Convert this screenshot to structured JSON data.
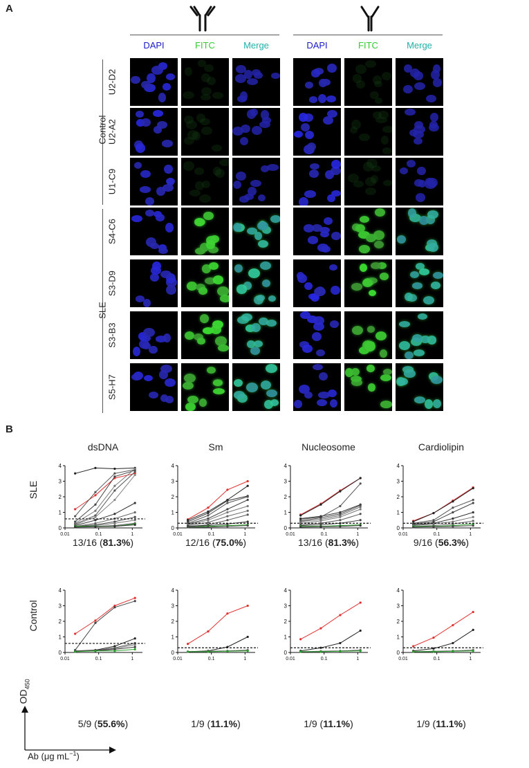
{
  "panelA": {
    "letter": "A",
    "channels": [
      "DAPI",
      "FITC",
      "Merge"
    ],
    "channel_colors": {
      "DAPI": "#1a1acc",
      "FITC": "#33cc33",
      "Merge": "#20b0a8"
    },
    "groups": [
      {
        "label": "Control",
        "samples": [
          "U2-D2",
          "U2-A2",
          "U1-C9"
        ]
      },
      {
        "label": "SLE",
        "samples": [
          "S4-C6",
          "S3-D9",
          "S3-B3",
          "S5-H7"
        ]
      }
    ],
    "antibody_icons": [
      "igg-dimer-icon",
      "igg-monomer-icon"
    ]
  },
  "panelB": {
    "letter": "B",
    "y_axis_label": "OD",
    "y_axis_sub": "450",
    "x_axis_label": "Ab (μg mL",
    "x_axis_sup": "−1",
    "x_axis_close": ")",
    "row_labels": [
      "SLE",
      "Control"
    ],
    "column_titles": [
      "dsDNA",
      "Sm",
      "Nucleosome",
      "Cardiolipin"
    ],
    "stats": {
      "sle": [
        {
          "count": "13/16 (",
          "pct": "81.3%",
          "close": ")"
        },
        {
          "count": "12/16 (",
          "pct": "75.0%",
          "close": ")"
        },
        {
          "count": "13/16 (",
          "pct": "81.3%",
          "close": ")"
        },
        {
          "count": "9/16 (",
          "pct": "56.3%",
          "close": ")"
        }
      ],
      "control": [
        {
          "count": "5/9 (",
          "pct": "55.6%",
          "close": ")"
        },
        {
          "count": "1/9 (",
          "pct": "11.1%",
          "close": ")"
        },
        {
          "count": "1/9 (",
          "pct": "11.1%",
          "close": ")"
        },
        {
          "count": "1/9 (",
          "pct": "11.1%",
          "close": ")"
        }
      ]
    }
  },
  "chart_data": [
    {
      "type": "line",
      "panel": "SLE dsDNA",
      "x": [
        0.02,
        0.08,
        0.3,
        1.2
      ],
      "ylim": [
        0,
        4
      ],
      "xlim": [
        0.01,
        2
      ],
      "xscale": "log",
      "yticks": [
        "0",
        "1",
        "2",
        "3",
        "4"
      ],
      "xticks": [
        "0.01",
        "0.1",
        "1"
      ],
      "cutoff": 0.58,
      "series": [
        {
          "values": [
            3.5,
            3.85,
            3.8,
            3.85
          ],
          "color": "#222"
        },
        {
          "values": [
            1.2,
            2.1,
            3.2,
            3.5
          ],
          "color": "#e03030"
        },
        {
          "values": [
            0.75,
            2.3,
            3.5,
            3.75
          ],
          "color": "#555"
        },
        {
          "values": [
            0.4,
            1.5,
            3.3,
            3.7
          ],
          "color": "#444"
        },
        {
          "values": [
            0.3,
            1.1,
            2.7,
            3.8
          ],
          "color": "#777"
        },
        {
          "values": [
            0.25,
            0.8,
            2.4,
            3.6
          ],
          "color": "#555"
        },
        {
          "values": [
            0.2,
            0.7,
            1.8,
            3.4
          ],
          "color": "#888"
        },
        {
          "values": [
            0.15,
            0.5,
            0.9,
            1.6
          ],
          "color": "#333"
        },
        {
          "values": [
            0.1,
            0.3,
            0.6,
            1.0
          ],
          "color": "#666"
        },
        {
          "values": [
            0.1,
            0.2,
            0.4,
            0.7
          ],
          "color": "#444"
        },
        {
          "values": [
            0.1,
            0.15,
            0.3,
            0.5
          ],
          "color": "#777"
        },
        {
          "values": [
            0.1,
            0.1,
            0.15,
            0.3
          ],
          "color": "#555"
        },
        {
          "values": [
            0.1,
            0.1,
            0.1,
            0.25
          ],
          "color": "#2aa02a"
        },
        {
          "values": [
            0.05,
            0.08,
            0.1,
            0.2
          ],
          "color": "#333"
        }
      ]
    },
    {
      "type": "line",
      "panel": "SLE Sm",
      "x": [
        0.02,
        0.08,
        0.3,
        1.2
      ],
      "ylim": [
        0,
        4
      ],
      "xlim": [
        0.01,
        2
      ],
      "xscale": "log",
      "yticks": [
        "0",
        "1",
        "2",
        "3",
        "4"
      ],
      "xticks": [
        "0.01",
        "0.1",
        "1"
      ],
      "cutoff": 0.3,
      "series": [
        {
          "values": [
            0.55,
            1.3,
            2.45,
            3.0
          ],
          "color": "#e03030"
        },
        {
          "values": [
            0.5,
            1.05,
            1.8,
            2.7
          ],
          "color": "#222"
        },
        {
          "values": [
            0.4,
            0.95,
            1.75,
            2.05
          ],
          "color": "#333"
        },
        {
          "values": [
            0.3,
            0.8,
            1.6,
            2.0
          ],
          "color": "#555"
        },
        {
          "values": [
            0.25,
            0.6,
            1.2,
            1.8
          ],
          "color": "#444"
        },
        {
          "values": [
            0.2,
            0.5,
            1.0,
            1.4
          ],
          "color": "#777"
        },
        {
          "values": [
            0.15,
            0.35,
            0.75,
            1.1
          ],
          "color": "#666"
        },
        {
          "values": [
            0.1,
            0.2,
            0.5,
            0.85
          ],
          "color": "#555"
        },
        {
          "values": [
            0.1,
            0.15,
            0.25,
            0.4
          ],
          "color": "#333"
        },
        {
          "values": [
            0.05,
            0.1,
            0.15,
            0.2
          ],
          "color": "#2aa02a"
        },
        {
          "values": [
            0.05,
            0.05,
            0.1,
            0.15
          ],
          "color": "#444"
        }
      ]
    },
    {
      "type": "line",
      "panel": "SLE Nucleosome",
      "x": [
        0.02,
        0.08,
        0.3,
        1.2
      ],
      "ylim": [
        0,
        4
      ],
      "xlim": [
        0.01,
        2
      ],
      "xscale": "log",
      "yticks": [
        "0",
        "1",
        "2",
        "3",
        "4"
      ],
      "xticks": [
        "0.01",
        "0.1",
        "1"
      ],
      "cutoff": 0.3,
      "series": [
        {
          "values": [
            0.85,
            1.55,
            2.4,
            3.2
          ],
          "color": "#e03030"
        },
        {
          "values": [
            0.8,
            1.5,
            2.35,
            3.2
          ],
          "color": "#222"
        },
        {
          "values": [
            0.55,
            0.7,
            1.4,
            2.85
          ],
          "color": "#555"
        },
        {
          "values": [
            0.6,
            0.75,
            1.0,
            1.5
          ],
          "color": "#333"
        },
        {
          "values": [
            0.45,
            0.65,
            0.9,
            1.45
          ],
          "color": "#444"
        },
        {
          "values": [
            0.4,
            0.55,
            0.8,
            1.35
          ],
          "color": "#666"
        },
        {
          "values": [
            0.3,
            0.45,
            0.7,
            1.2
          ],
          "color": "#777"
        },
        {
          "values": [
            0.2,
            0.3,
            0.5,
            0.9
          ],
          "color": "#555"
        },
        {
          "values": [
            0.15,
            0.2,
            0.3,
            0.5
          ],
          "color": "#444"
        },
        {
          "values": [
            0.1,
            0.1,
            0.15,
            0.2
          ],
          "color": "#2aa02a"
        },
        {
          "values": [
            0.05,
            0.08,
            0.1,
            0.15
          ],
          "color": "#333"
        }
      ]
    },
    {
      "type": "line",
      "panel": "SLE Cardiolipin",
      "x": [
        0.02,
        0.08,
        0.3,
        1.2
      ],
      "ylim": [
        0,
        4
      ],
      "xlim": [
        0.01,
        2
      ],
      "xscale": "log",
      "yticks": [
        "0",
        "1",
        "2",
        "3",
        "4"
      ],
      "xticks": [
        "0.01",
        "0.1",
        "1"
      ],
      "cutoff": 0.3,
      "series": [
        {
          "values": [
            0.45,
            0.95,
            1.75,
            2.6
          ],
          "color": "#e03030"
        },
        {
          "values": [
            0.4,
            0.95,
            1.7,
            2.55
          ],
          "color": "#222"
        },
        {
          "values": [
            0.3,
            0.5,
            1.3,
            1.8
          ],
          "color": "#555"
        },
        {
          "values": [
            0.25,
            0.4,
            1.0,
            1.6
          ],
          "color": "#444"
        },
        {
          "values": [
            0.2,
            0.3,
            0.6,
            1.0
          ],
          "color": "#333"
        },
        {
          "values": [
            0.15,
            0.25,
            0.4,
            0.7
          ],
          "color": "#777"
        },
        {
          "values": [
            0.1,
            0.15,
            0.25,
            0.45
          ],
          "color": "#666"
        },
        {
          "values": [
            0.1,
            0.1,
            0.15,
            0.25
          ],
          "color": "#2aa02a"
        },
        {
          "values": [
            0.05,
            0.08,
            0.1,
            0.15
          ],
          "color": "#444"
        }
      ]
    },
    {
      "type": "line",
      "panel": "Control dsDNA",
      "x": [
        0.02,
        0.08,
        0.3,
        1.2
      ],
      "ylim": [
        0,
        4
      ],
      "xlim": [
        0.01,
        2
      ],
      "xscale": "log",
      "yticks": [
        "0",
        "1",
        "2",
        "3",
        "4"
      ],
      "xticks": [
        "0.01",
        "0.1",
        "1"
      ],
      "cutoff": 0.58,
      "series": [
        {
          "values": [
            1.2,
            2.05,
            3.0,
            3.5
          ],
          "color": "#e03030"
        },
        {
          "values": [
            0.15,
            1.9,
            2.9,
            3.3
          ],
          "color": "#444"
        },
        {
          "values": [
            0.1,
            0.15,
            0.4,
            0.9
          ],
          "color": "#222"
        },
        {
          "values": [
            0.1,
            0.12,
            0.3,
            0.6
          ],
          "color": "#555"
        },
        {
          "values": [
            0.1,
            0.1,
            0.25,
            0.5
          ],
          "color": "#777"
        },
        {
          "values": [
            0.08,
            0.1,
            0.2,
            0.35
          ],
          "color": "#333"
        },
        {
          "values": [
            0.05,
            0.1,
            0.1,
            0.2
          ],
          "color": "#2aa02a"
        }
      ]
    },
    {
      "type": "line",
      "panel": "Control Sm",
      "x": [
        0.02,
        0.08,
        0.3,
        1.2
      ],
      "ylim": [
        0,
        4
      ],
      "xlim": [
        0.01,
        2
      ],
      "xscale": "log",
      "yticks": [
        "0",
        "1",
        "2",
        "3",
        "4"
      ],
      "xticks": [
        "0.01",
        "0.1",
        "1"
      ],
      "cutoff": 0.3,
      "series": [
        {
          "values": [
            0.55,
            1.35,
            2.5,
            3.0
          ],
          "color": "#e03030"
        },
        {
          "values": [
            0.05,
            0.1,
            0.35,
            1.0
          ],
          "color": "#222"
        },
        {
          "values": [
            0.05,
            0.08,
            0.1,
            0.15
          ],
          "color": "#555"
        },
        {
          "values": [
            0.05,
            0.05,
            0.08,
            0.1
          ],
          "color": "#2aa02a"
        }
      ]
    },
    {
      "type": "line",
      "panel": "Control Nucleosome",
      "x": [
        0.02,
        0.08,
        0.3,
        1.2
      ],
      "ylim": [
        0,
        4
      ],
      "xlim": [
        0.01,
        2
      ],
      "xscale": "log",
      "yticks": [
        "0",
        "1",
        "2",
        "3",
        "4"
      ],
      "xticks": [
        "0.01",
        "0.1",
        "1"
      ],
      "cutoff": 0.3,
      "series": [
        {
          "values": [
            0.85,
            1.55,
            2.4,
            3.2
          ],
          "color": "#e03030"
        },
        {
          "values": [
            0.1,
            0.3,
            0.6,
            1.4
          ],
          "color": "#222"
        },
        {
          "values": [
            0.05,
            0.08,
            0.1,
            0.15
          ],
          "color": "#555"
        },
        {
          "values": [
            0.05,
            0.05,
            0.08,
            0.1
          ],
          "color": "#2aa02a"
        }
      ]
    },
    {
      "type": "line",
      "panel": "Control Cardiolipin",
      "x": [
        0.02,
        0.08,
        0.3,
        1.2
      ],
      "ylim": [
        0,
        4
      ],
      "xlim": [
        0.01,
        2
      ],
      "xscale": "log",
      "yticks": [
        "0",
        "1",
        "2",
        "3",
        "4"
      ],
      "xticks": [
        "0.01",
        "0.1",
        "1"
      ],
      "cutoff": 0.3,
      "series": [
        {
          "values": [
            0.4,
            0.95,
            1.75,
            2.6
          ],
          "color": "#e03030"
        },
        {
          "values": [
            0.1,
            0.25,
            0.6,
            1.45
          ],
          "color": "#222"
        },
        {
          "values": [
            0.05,
            0.08,
            0.1,
            0.15
          ],
          "color": "#555"
        },
        {
          "values": [
            0.05,
            0.05,
            0.08,
            0.1
          ],
          "color": "#2aa02a"
        }
      ]
    }
  ]
}
